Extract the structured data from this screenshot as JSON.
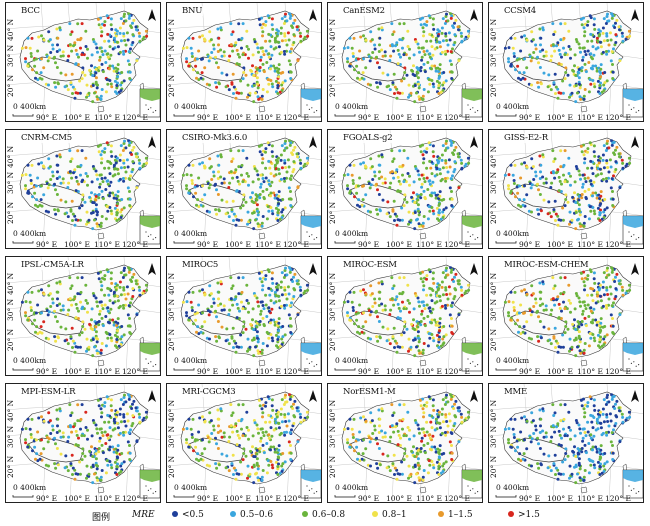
{
  "panels": [
    {
      "title": "BCC",
      "weights": [
        0.15,
        0.28,
        0.35,
        0.1,
        0.07,
        0.05
      ]
    },
    {
      "title": "BNU",
      "weights": [
        0.1,
        0.22,
        0.33,
        0.15,
        0.12,
        0.08
      ]
    },
    {
      "title": "CanESM2",
      "weights": [
        0.15,
        0.3,
        0.35,
        0.1,
        0.06,
        0.04
      ]
    },
    {
      "title": "CCSM4",
      "weights": [
        0.2,
        0.3,
        0.32,
        0.1,
        0.05,
        0.03
      ]
    },
    {
      "title": "CNRM-CM5",
      "weights": [
        0.25,
        0.2,
        0.38,
        0.12,
        0.03,
        0.02
      ]
    },
    {
      "title": "CSIRO-Mk3.6.0",
      "weights": [
        0.2,
        0.2,
        0.4,
        0.12,
        0.05,
        0.03
      ]
    },
    {
      "title": "FGOALS-g2",
      "weights": [
        0.2,
        0.22,
        0.38,
        0.12,
        0.05,
        0.03
      ]
    },
    {
      "title": "GISS-E2-R",
      "weights": [
        0.25,
        0.22,
        0.32,
        0.1,
        0.06,
        0.05
      ]
    },
    {
      "title": "IPSL-CM5A-LR",
      "weights": [
        0.15,
        0.15,
        0.5,
        0.12,
        0.05,
        0.03
      ]
    },
    {
      "title": "MIROC5",
      "weights": [
        0.25,
        0.2,
        0.4,
        0.1,
        0.03,
        0.02
      ]
    },
    {
      "title": "MIROC-ESM",
      "weights": [
        0.15,
        0.15,
        0.45,
        0.12,
        0.08,
        0.05
      ]
    },
    {
      "title": "MIROC-ESM-CHEM",
      "weights": [
        0.15,
        0.15,
        0.45,
        0.12,
        0.08,
        0.05
      ]
    },
    {
      "title": "MPI-ESM-LR",
      "weights": [
        0.25,
        0.2,
        0.35,
        0.1,
        0.06,
        0.04
      ]
    },
    {
      "title": "MRI-CGCM3",
      "weights": [
        0.18,
        0.18,
        0.38,
        0.18,
        0.05,
        0.03
      ]
    },
    {
      "title": "NorESM1-M",
      "weights": [
        0.15,
        0.15,
        0.38,
        0.15,
        0.1,
        0.07
      ]
    },
    {
      "title": "MME",
      "weights": [
        0.45,
        0.3,
        0.2,
        0.04,
        0.01,
        0.0
      ]
    }
  ],
  "axes": {
    "lat_labels": [
      "40° N",
      "30° N",
      "20° N"
    ],
    "lon_labels": [
      "90° E",
      "100° E",
      "110° E",
      "120° E"
    ],
    "scale_label": "0 400km"
  },
  "legend": {
    "title": "图例",
    "variable": "MRE",
    "classes": [
      {
        "label": "<0.5",
        "color": "#1f3f9a"
      },
      {
        "label": "0.5–0.6",
        "color": "#3aa6de"
      },
      {
        "label": "0.6–0.8",
        "color": "#6ab43c"
      },
      {
        "label": "0.8–1",
        "color": "#f0e24a"
      },
      {
        "label": "1–1.5",
        "color": "#e89a2c"
      },
      {
        "label": ">1.5",
        "color": "#d8261e"
      }
    ]
  },
  "icons": [
    "north-arrow-icon",
    "south-china-sea-inset-icon"
  ]
}
